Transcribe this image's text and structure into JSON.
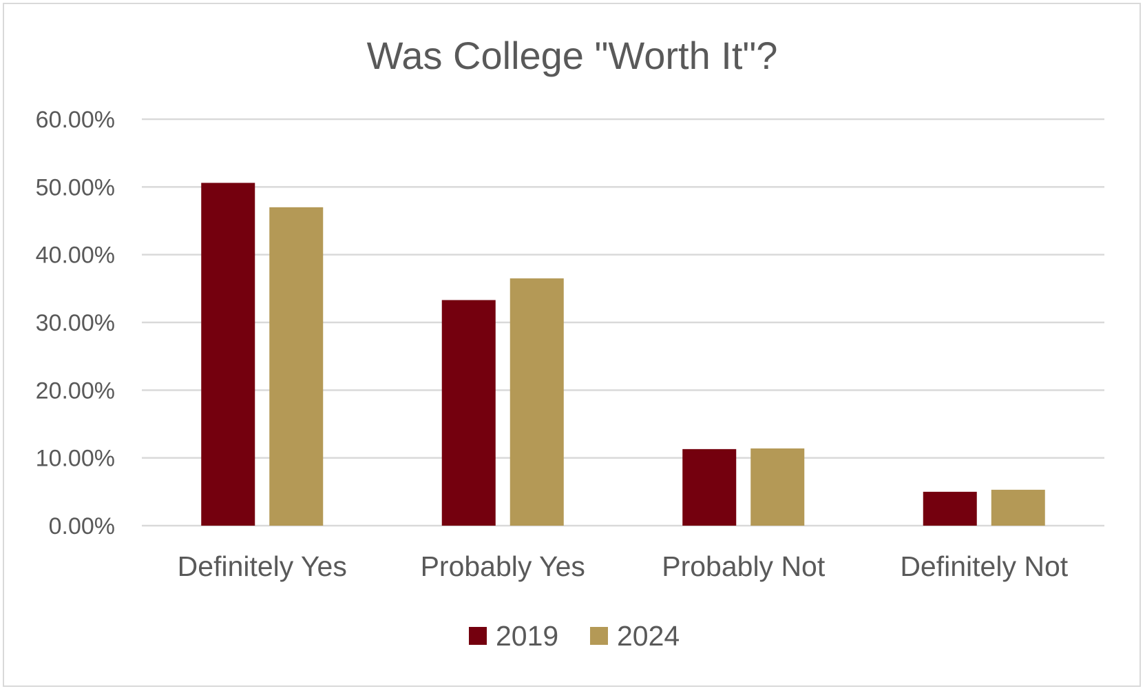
{
  "chart_data": {
    "type": "bar",
    "title": "Was College \"Worth It\"?",
    "categories": [
      "Definitely Yes",
      "Probably Yes",
      "Probably Not",
      "Definitely Not"
    ],
    "series": [
      {
        "name": "2019",
        "color": "#74000E",
        "values": [
          50.6,
          33.3,
          11.3,
          5.0
        ]
      },
      {
        "name": "2024",
        "color": "#B49956",
        "values": [
          47.0,
          36.5,
          11.4,
          5.3
        ]
      }
    ],
    "ylim": [
      0,
      60
    ],
    "yticks": [
      "0.00%",
      "10.00%",
      "20.00%",
      "30.00%",
      "40.00%",
      "50.00%",
      "60.00%"
    ],
    "y_unit": "percent",
    "grid": true,
    "legend": "bottom"
  }
}
